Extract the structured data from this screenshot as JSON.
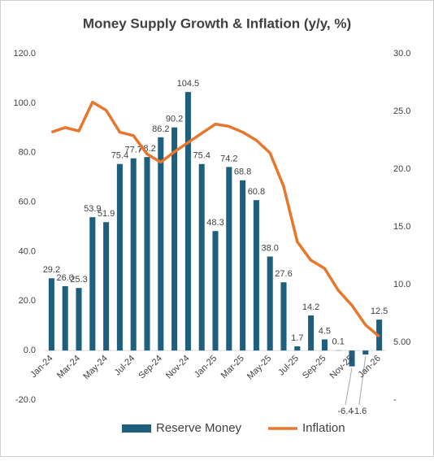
{
  "chart_data": {
    "type": "bar_line",
    "title": "Money Supply Growth &  Inflation (y/y, %)",
    "categories": [
      "Jan-24",
      null,
      "Mar-24",
      null,
      "May-24",
      null,
      "Jul-24",
      null,
      "Sep-24",
      null,
      "Nov-24",
      null,
      "Jan-25",
      null,
      "Mar-25",
      null,
      "May-25",
      null,
      "Jul-25",
      null,
      "Sep-25",
      null,
      "Nov-25",
      null,
      "Jan-26"
    ],
    "series": [
      {
        "name": "Reserve Money",
        "type": "bar",
        "color": "#1d5f7c",
        "values": [
          29.2,
          26.0,
          25.3,
          53.9,
          51.9,
          75.4,
          77.7,
          78.2,
          86.2,
          90.2,
          104.5,
          75.4,
          48.3,
          74.2,
          68.8,
          60.8,
          38.0,
          27.6,
          1.7,
          14.2,
          4.5,
          0.1,
          -6.4,
          -1.6,
          12.5
        ],
        "value_labels": [
          "29.2",
          "26.0",
          "25.3",
          "53.9",
          "51.9",
          "75.4",
          "77.7",
          "78.2",
          "86.2",
          "90.2",
          "104.5",
          "75.4",
          "48.3",
          "74.2",
          "68.8",
          "60.8",
          "38.0",
          "27.6",
          "1.7",
          "14.2",
          "4.5",
          "0.1",
          "-6.4",
          "-1.6",
          "12.5"
        ]
      },
      {
        "name": "Inflation",
        "type": "line",
        "axis": "y2",
        "color": "#e8772e",
        "values": [
          23.2,
          23.6,
          23.3,
          25.8,
          25.1,
          23.2,
          22.9,
          21.3,
          20.6,
          21.5,
          22.3,
          23.1,
          23.9,
          23.7,
          23.2,
          22.5,
          21.4,
          18.5,
          13.7,
          12.1,
          11.4,
          9.5,
          8.2,
          6.5,
          5.5
        ]
      }
    ],
    "ylim": [
      -20,
      120
    ],
    "yticks": [
      {
        "value": -20,
        "label": "-20.0"
      },
      {
        "value": 0,
        "label": "0.0"
      },
      {
        "value": 20,
        "label": "20.0"
      },
      {
        "value": 40,
        "label": "40.0"
      },
      {
        "value": 60,
        "label": "60.0"
      },
      {
        "value": 80,
        "label": "80.0"
      },
      {
        "value": 100,
        "label": "100.0"
      },
      {
        "value": 120,
        "label": "120.0"
      }
    ],
    "y2lim": [
      0,
      30
    ],
    "y2ticks": [
      {
        "value": 0,
        "label": "-"
      },
      {
        "value": 5,
        "label": "5.00"
      },
      {
        "value": 10,
        "label": "10.0"
      },
      {
        "value": 15,
        "label": "15.0"
      },
      {
        "value": 20,
        "label": "20.0"
      },
      {
        "value": 25,
        "label": "25.0"
      },
      {
        "value": 30,
        "label": "30.0"
      }
    ],
    "legend": "bottom"
  }
}
